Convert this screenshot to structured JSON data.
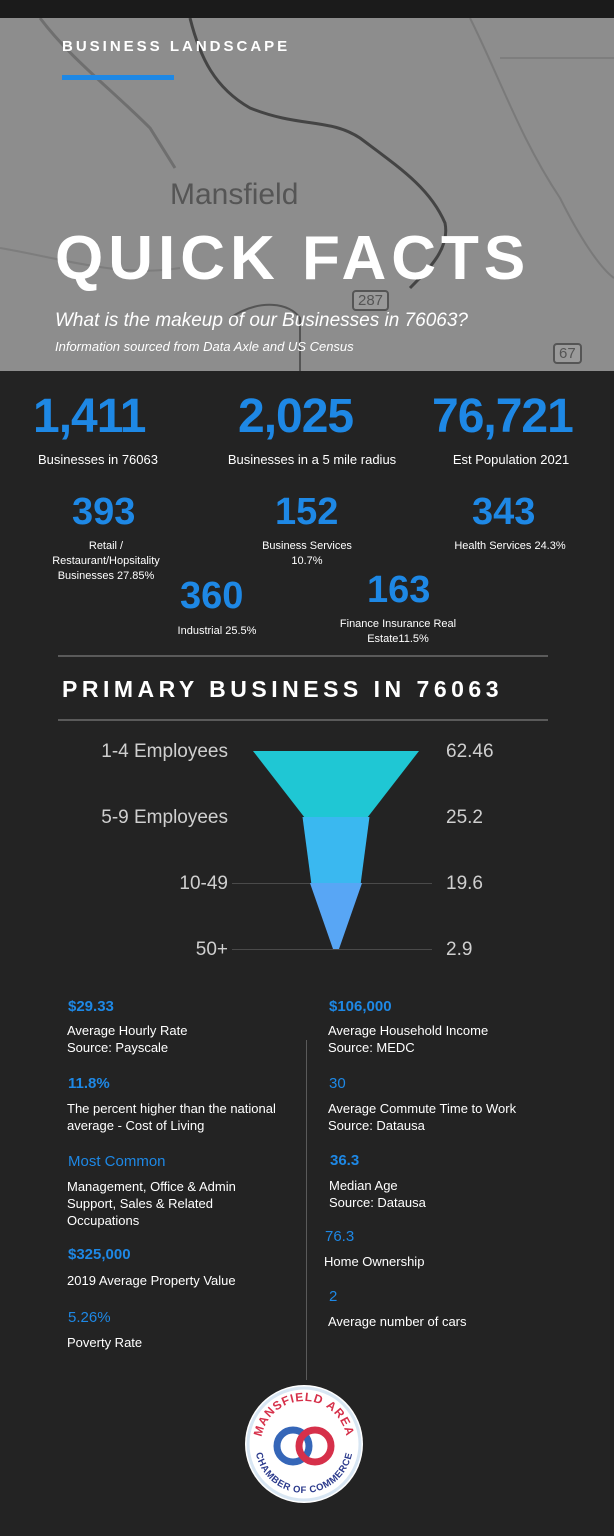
{
  "header": {
    "kicker": "BUSINESS LANDSCAPE",
    "map_label": "Mansfield",
    "highway_a": "287",
    "highway_b": "67",
    "title": "QUICK FACTS",
    "subtitle": "What is the makeup of our Businesses in 76063?",
    "source": "Information sourced from Data Axle and US Census"
  },
  "facts": {
    "f1": {
      "value": "1,411",
      "label": "Businesses in 76063"
    },
    "f2": {
      "value": "2,025",
      "label": "Businesses in a 5 mile radius"
    },
    "f3": {
      "value": "76,721",
      "label": "Est Population 2021"
    },
    "f4": {
      "value": "393",
      "label_lines": [
        "Retail /",
        "Restaurant/Hopsitality",
        "Businesses 27.85%"
      ]
    },
    "f5": {
      "value": "152",
      "label_lines": [
        "Business Services",
        "10.7%"
      ]
    },
    "f6": {
      "value": "343",
      "label": "Health Services 24.3%"
    },
    "f7": {
      "value": "360",
      "label": "Industrial 25.5%"
    },
    "f8": {
      "value": "163",
      "label_lines": [
        "Finance Insurance Real",
        "Estate11.5%"
      ]
    }
  },
  "section_title": "PRIMARY BUSINESS IN 76063",
  "chart_data": {
    "type": "funnel",
    "categories": [
      "1-4 Employees",
      "5-9 Employees",
      "10-49",
      "50+"
    ],
    "values": [
      62.46,
      25.2,
      19.6,
      2.9
    ],
    "colors": [
      "#1fc7d4",
      "#3ab8f0",
      "#58a6f5",
      "#5a9cf7"
    ]
  },
  "left_stats": [
    {
      "value": "$29.33",
      "lines": [
        "Average Hourly Rate",
        "Source: Payscale"
      ]
    },
    {
      "value": "11.8%",
      "lines": [
        "The percent higher than the national",
        "average - Cost of Living"
      ]
    },
    {
      "value": "Most Common",
      "lines": [
        "Management, Office & Admin",
        "Support, Sales & Related",
        "Occupations"
      ]
    },
    {
      "value": "$325,000",
      "lines": [
        "2019 Average Property Value"
      ]
    },
    {
      "value": "5.26%",
      "lines": [
        "Poverty Rate"
      ]
    }
  ],
  "right_stats": [
    {
      "value": "$106,000",
      "lines": [
        "Average Household Income",
        "Source: MEDC"
      ]
    },
    {
      "value": "30",
      "lines": [
        "Average Commute Time to Work",
        "Source: Datausa"
      ]
    },
    {
      "value": "36.3",
      "lines": [
        "Median Age",
        "Source: Datausa"
      ]
    },
    {
      "value": "76.3",
      "lines": [
        "Home Ownership"
      ]
    },
    {
      "value": "2",
      "lines": [
        "Average number of cars"
      ]
    }
  ],
  "logo": {
    "top_text": "MANSFIELD AREA",
    "bottom_text": "CHAMBER OF COMMERCE"
  },
  "colors": {
    "accent": "#1e88e5",
    "background": "#232323"
  }
}
